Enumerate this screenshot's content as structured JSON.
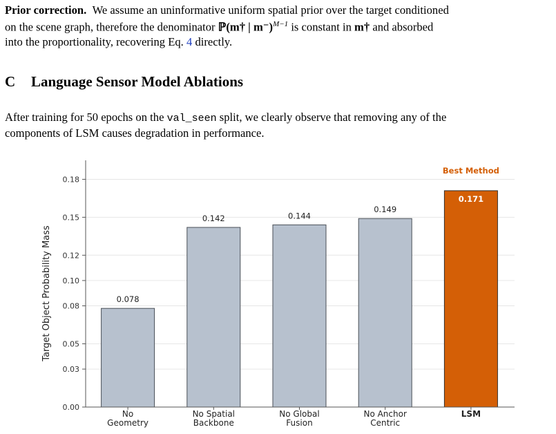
{
  "prior": {
    "lead": "Prior correction.",
    "line1_text": "We assume an uninformative uniform spatial prior over the target conditioned",
    "line2_pre": "on the scene graph, therefore the denominator",
    "math_den": "ℙ(m† | m⁻)",
    "math_exp": "M−1",
    "line2_mid": "is constant in",
    "math_m": "m†",
    "line2_post": "and absorbed",
    "line3_pre": "into the proportionality, recovering Eq.",
    "eq_ref": "4",
    "line3_post": "directly."
  },
  "section": {
    "number": "C",
    "title": "Language Sensor Model Ablations"
  },
  "ablation": {
    "pre": "After training for",
    "epochs": "50",
    "mid": "epochs on the",
    "split": "val_seen",
    "post": "split, we clearly observe that removing any of the",
    "line2": "components of LSM causes degradation in performance."
  },
  "chart_data": {
    "type": "bar",
    "categories": [
      [
        "No",
        "Geometry"
      ],
      [
        "No Spatial",
        "Backbone"
      ],
      [
        "No Global",
        "Fusion"
      ],
      [
        "No Anchor",
        "Centric"
      ],
      [
        "LSM"
      ]
    ],
    "values": [
      0.078,
      0.142,
      0.144,
      0.149,
      0.171
    ],
    "value_labels": [
      "0.078",
      "0.142",
      "0.144",
      "0.149",
      "0.171"
    ],
    "ylabel": "Target Object Probability Mass",
    "yticks": [
      "0.00",
      "0.03",
      "0.05",
      "0.08",
      "0.10",
      "0.12",
      "0.15",
      "0.18"
    ],
    "ylim": [
      0,
      0.195
    ],
    "annotation": "Best Method",
    "highlight_index": 4,
    "colors": {
      "bar": "#b7c1ce",
      "bar_edge": "#4a4f57",
      "highlight": "#d45f06",
      "highlight_edge": "#2e2e2e",
      "annotation": "#d45f06",
      "grid": "#e6e6e6"
    },
    "grid": true
  }
}
